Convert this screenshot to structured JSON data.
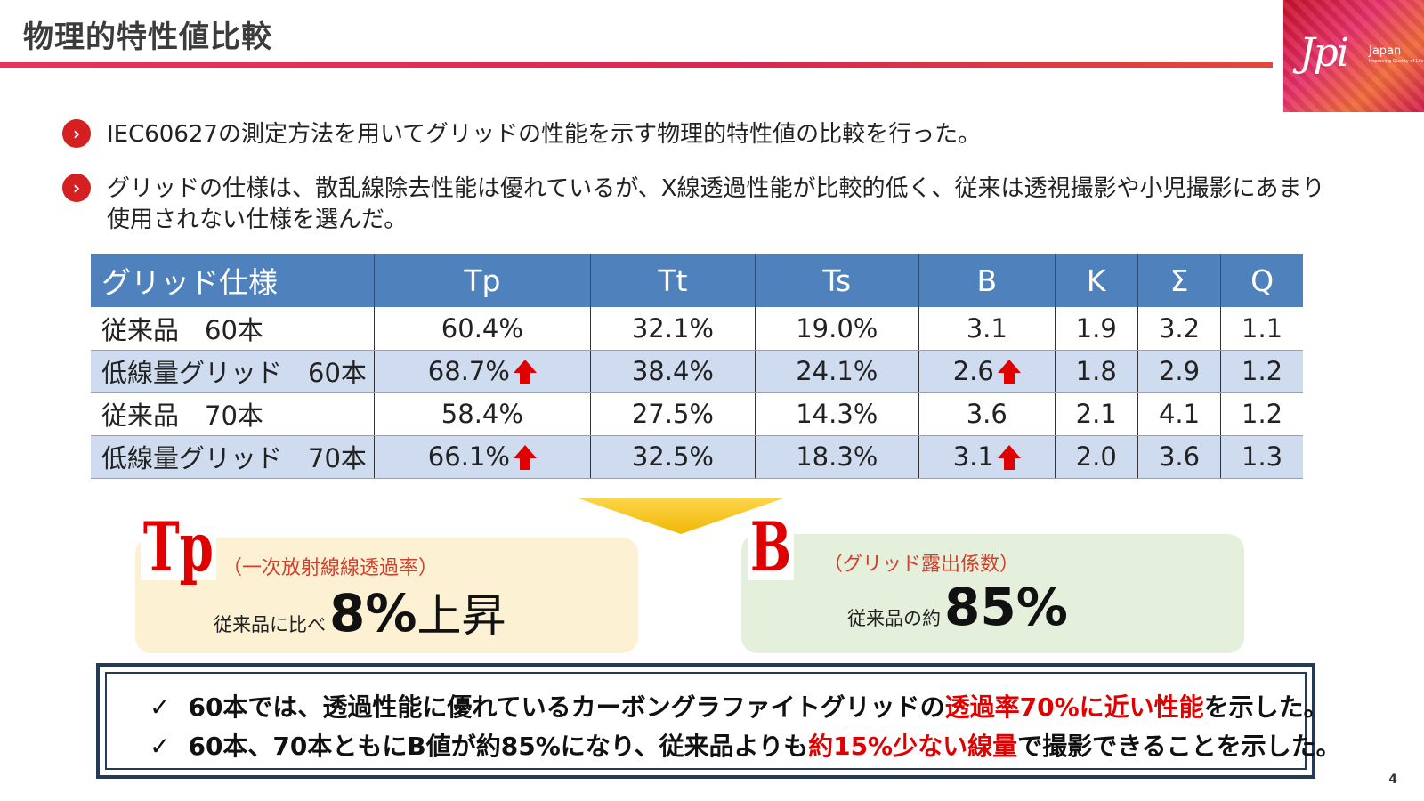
{
  "title": "物理的特性値比較",
  "logo": {
    "mark": "Jpi",
    "text": "Japan",
    "tagline": "Improving Quality of Life"
  },
  "bullets": [
    "IEC60627の測定方法を用いてグリッドの性能を示す物理的特性値の比較を行った。",
    "グリッドの仕様は、散乱線除去性能は優れているが、X線透過性能が比較的低く、従来は透視撮影や小児撮影にあまり使用されない仕様を選んだ。"
  ],
  "table": {
    "headers": [
      "グリッド仕様",
      "Tp",
      "Tt",
      "Ts",
      "B",
      "K",
      "Σ",
      "Q"
    ],
    "rows": [
      [
        "従来品　60本",
        "60.4%",
        "32.1%",
        "19.0%",
        "3.1",
        "1.9",
        "3.2",
        "1.1"
      ],
      [
        "低線量グリッド　60本",
        "68.7%",
        "38.4%",
        "24.1%",
        "2.6",
        "1.8",
        "2.9",
        "1.2"
      ],
      [
        "従来品　70本",
        "58.4%",
        "27.5%",
        "14.3%",
        "3.6",
        "2.1",
        "4.1",
        "1.2"
      ],
      [
        "低線量グリッド　70本",
        "66.1%",
        "32.5%",
        "18.3%",
        "3.1",
        "2.0",
        "3.6",
        "1.3"
      ]
    ]
  },
  "tp_box": {
    "label": "Tp",
    "sub": "（一次放射線線透過率）",
    "pre": "従来品に比べ",
    "value": "8%",
    "suffix": "上昇"
  },
  "b_box": {
    "label": "B",
    "sub": "（グリッド露出係数）",
    "pre": "従来品の約",
    "value": "85%"
  },
  "summary": {
    "check": "✓",
    "line1": {
      "a": "60本では、透過性能に優れているカーボングラファイトグリッドの",
      "red": "透過率70%に近い性能",
      "b": "を示した。"
    },
    "line2": {
      "a": "60本、70本ともにB値が約85%になり、従来品よりも",
      "red": "約15%少ない線量",
      "b": "で撮影できることを示した。"
    }
  },
  "page_number": "4"
}
